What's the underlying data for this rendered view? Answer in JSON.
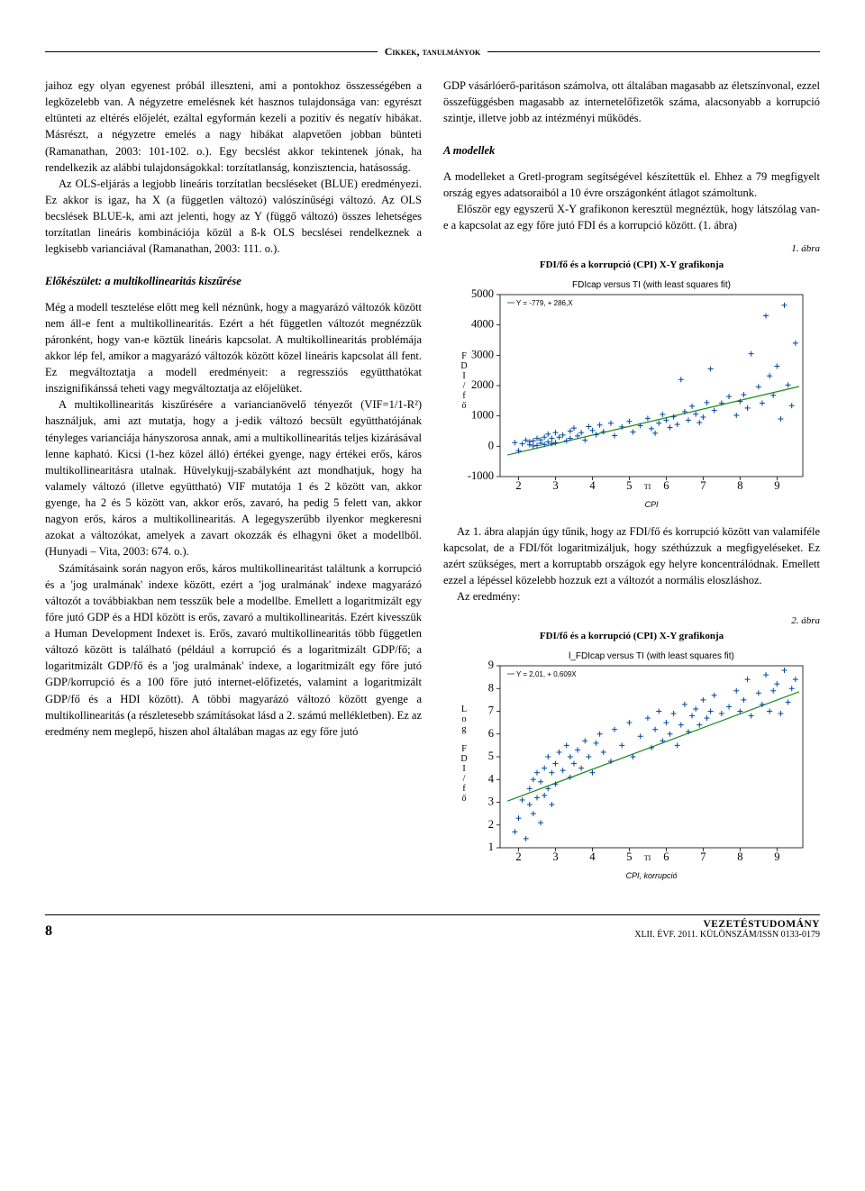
{
  "header": {
    "title": "Cikkek, tanulmányok"
  },
  "left_column": {
    "p1": "jaihoz egy olyan egyenest próbál illeszteni, ami a pontokhoz összességében a legközelebb van. A négyzetre emelésnek két hasznos tulajdonsága van: egyrészt eltünteti az eltérés előjelét, ezáltal egyformán kezeli a pozitív és negatív hibákat. Másrészt, a négyzetre emelés a nagy hibákat alapvetően jobban bünteti (Ramanathan, 2003: 101-102. o.). Egy becslést akkor tekintenek jónak, ha rendelkezik az alábbi tulajdonságokkal: torzítatlanság, konzisztencia, hatásosság.",
    "p2": "Az OLS-eljárás a legjobb lineáris torzítatlan becsléseket (BLUE) eredményezi. Ez akkor is igaz, ha X (a független változó) valószínűségi változó. Az OLS becslések BLUE-k, ami azt jelenti, hogy az Y (függő változó) összes lehetséges torzítatlan lineáris kombinációja közül a ß-k OLS becslései rendelkeznek a legkisebb varianciával (Ramanathan, 2003: 111. o.).",
    "h1": "Előkészület: a multikollinearitás kiszűrése",
    "p3": "Még a modell tesztelése előtt meg kell néznünk, hogy a magyarázó változók között nem áll-e fent a multikollinearitás. Ezért a hét független változót megnézzük páronként, hogy van-e köztük lineáris kapcsolat. A multikollinearitás problémája akkor lép fel, amikor a magyarázó változók között közel lineáris kapcsolat áll fent. Ez megváltoztatja a modell eredményeit: a regressziós együtthatókat inszignifikánssá teheti vagy megváltoztatja az előjelüket.",
    "p4": "A multikollinearitás kiszűrésére a variancianövelő tényezőt (VIF=1/1-R²) használjuk, ami azt mutatja, hogy a j-edik változó becsült együtthatójának tényleges varianciája hányszorosa annak, ami a multikollinearitás teljes kizárásával lenne kapható. Kicsi (1-hez közel álló) értékei gyenge, nagy értékei erős, káros multikollinearitásra utalnak. Hüvelykujj-szabályként azt mondhatjuk, hogy ha valamely változó (illetve együttható) VIF mutatója 1 és 2 között van, akkor gyenge, ha 2 és 5 között van, akkor erős, zavaró, ha pedig 5 felett van, akkor nagyon erős, káros a multikollinearitás. A legegyszerűbb ilyenkor megkeresni azokat a változókat, amelyek a zavart okozzák és elhagyni őket a modellből. (Hunyadi – Vita, 2003: 674. o.).",
    "p5": "Számításaink során nagyon erős, káros multikollinearitást találtunk a korrupció és a 'jog uralmának' indexe között, ezért a 'jog uralmának' indexe magyarázó változót a továbbiakban nem tesszük bele a modellbe. Emellett a logaritmizált egy főre jutó GDP és a HDI között is erős, zavaró a multikollinearitás. Ezért kivesszük a Human Development Indexet is. Erős, zavaró multikollinearitás több független változó között is található (például a korrupció és a logaritmizált GDP/fő; a logaritmizált GDP/fő és a 'jog uralmának' indexe, a logaritmizált egy főre jutó GDP/korrupció és a 100 főre jutó internet-előfizetés, valamint a logaritmizált GDP/fő és a HDI között). A többi magyarázó változó között gyenge a multikollinearitás (a részletesebb számításokat lásd a 2. számú mellékletben). Ez az eredmény nem meglepő, hiszen ahol általában magas az egy főre jutó"
  },
  "right_column": {
    "p1": "GDP vásárlóerő-paritáson számolva, ott általában magasabb az életszínvonal, ezzel összefüggésben magasabb az internetelőfizetők száma, alacsonyabb a korrupció szintje, illetve jobb az intézményi működés.",
    "h1": "A modellek",
    "p2": "A modelleket a Gretl-program segítségével készítettük el. Ehhez a 79 megfigyelt ország egyes adatsoraiból a 10 évre országonként átlagot számoltunk.",
    "p3": "Először egy egyszerű X-Y grafikonon keresztül megnéztük, hogy látszólag van-e a kapcsolat az egy főre jutó FDI és a korrupció között. (1. ábra)",
    "fig1_num": "1. ábra",
    "fig1_title": "FDI/fő és a korrupció (CPI) X-Y grafikonja",
    "p4": "Az 1. ábra alapján úgy tűnik, hogy az FDI/fő és korrupció között van valamiféle kapcsolat, de a FDI/főt logaritmizáljuk, hogy széthúzzuk a megfigyeléseket. Ez azért szükséges, mert a korruptabb országok egy helyre koncentrálódnak. Emellett ezzel a lépéssel közelebb hozzuk ezt a változót a normális eloszláshoz.",
    "p5": "Az eredmény:",
    "fig2_num": "2. ábra",
    "fig2_title": "FDI/fő és a korrupció (CPI) X-Y grafikonja"
  },
  "chart1": {
    "type": "scatter",
    "plot_title": "FDIcap versus TI (with least squares fit)",
    "fit_legend": "Y = -779, + 286,X",
    "xlabel": "CPI",
    "xlabel_sub": "TI",
    "ylabel_vertical": "FDI/fő",
    "ylim": [
      -1000,
      5000
    ],
    "yticks": [
      -1000,
      0,
      1000,
      2000,
      3000,
      4000,
      5000
    ],
    "xlim": [
      1.5,
      9.7
    ],
    "xticks": [
      2,
      3,
      4,
      5,
      6,
      7,
      8,
      9
    ],
    "marker": "+",
    "marker_color": "#0047a0",
    "line_color": "#1a8a1a",
    "grid_color": "#000000",
    "background_color": "#ffffff",
    "line_points": [
      [
        1.7,
        -290
      ],
      [
        9.6,
        1970
      ]
    ],
    "points": [
      [
        1.9,
        120
      ],
      [
        2.0,
        -150
      ],
      [
        2.1,
        80
      ],
      [
        2.2,
        200
      ],
      [
        2.3,
        50
      ],
      [
        2.3,
        150
      ],
      [
        2.4,
        10
      ],
      [
        2.4,
        180
      ],
      [
        2.5,
        260
      ],
      [
        2.5,
        30
      ],
      [
        2.6,
        100
      ],
      [
        2.6,
        210
      ],
      [
        2.7,
        300
      ],
      [
        2.7,
        60
      ],
      [
        2.8,
        400
      ],
      [
        2.8,
        140
      ],
      [
        2.9,
        90
      ],
      [
        2.9,
        260
      ],
      [
        3.0,
        450
      ],
      [
        3.0,
        120
      ],
      [
        3.1,
        300
      ],
      [
        3.2,
        370
      ],
      [
        3.3,
        180
      ],
      [
        3.4,
        500
      ],
      [
        3.4,
        260
      ],
      [
        3.5,
        600
      ],
      [
        3.6,
        340
      ],
      [
        3.7,
        450
      ],
      [
        3.8,
        200
      ],
      [
        3.9,
        650
      ],
      [
        4.0,
        520
      ],
      [
        4.1,
        380
      ],
      [
        4.2,
        700
      ],
      [
        4.3,
        480
      ],
      [
        4.5,
        760
      ],
      [
        4.6,
        350
      ],
      [
        4.8,
        640
      ],
      [
        5.0,
        820
      ],
      [
        5.1,
        470
      ],
      [
        5.3,
        680
      ],
      [
        5.5,
        920
      ],
      [
        5.6,
        580
      ],
      [
        5.7,
        430
      ],
      [
        5.8,
        760
      ],
      [
        5.9,
        1050
      ],
      [
        6.0,
        860
      ],
      [
        6.1,
        620
      ],
      [
        6.2,
        970
      ],
      [
        6.3,
        720
      ],
      [
        6.4,
        2200
      ],
      [
        6.5,
        1140
      ],
      [
        6.6,
        860
      ],
      [
        6.7,
        1320
      ],
      [
        6.8,
        1060
      ],
      [
        6.9,
        780
      ],
      [
        7.0,
        960
      ],
      [
        7.1,
        1440
      ],
      [
        7.2,
        2550
      ],
      [
        7.3,
        1180
      ],
      [
        7.5,
        1420
      ],
      [
        7.7,
        1640
      ],
      [
        7.9,
        1020
      ],
      [
        8.0,
        1480
      ],
      [
        8.1,
        1700
      ],
      [
        8.2,
        1260
      ],
      [
        8.3,
        3050
      ],
      [
        8.5,
        1960
      ],
      [
        8.6,
        1420
      ],
      [
        8.7,
        4300
      ],
      [
        8.8,
        2320
      ],
      [
        8.9,
        1680
      ],
      [
        9.0,
        2640
      ],
      [
        9.1,
        900
      ],
      [
        9.2,
        4650
      ],
      [
        9.3,
        2020
      ],
      [
        9.4,
        1340
      ],
      [
        9.5,
        3400
      ]
    ]
  },
  "chart2": {
    "type": "scatter",
    "plot_title": "l_FDIcap versus TI (with least squares fit)",
    "fit_legend": "Y = 2,01, + 0,609X",
    "xlabel": "CPI, korrupció",
    "xlabel_sub": "TI",
    "ylabel_vertical": "Log FDI/fő",
    "ylim": [
      1,
      9
    ],
    "yticks": [
      1,
      2,
      3,
      4,
      5,
      6,
      7,
      8,
      9
    ],
    "xlim": [
      1.5,
      9.7
    ],
    "xticks": [
      2,
      3,
      4,
      5,
      6,
      7,
      8,
      9
    ],
    "marker": "+",
    "marker_color": "#0047a0",
    "line_color": "#1a8a1a",
    "grid_color": "#000000",
    "background_color": "#ffffff",
    "line_points": [
      [
        1.7,
        3.05
      ],
      [
        9.6,
        7.86
      ]
    ],
    "points": [
      [
        1.9,
        1.7
      ],
      [
        2.0,
        2.3
      ],
      [
        2.1,
        3.1
      ],
      [
        2.2,
        1.4
      ],
      [
        2.3,
        2.9
      ],
      [
        2.3,
        3.6
      ],
      [
        2.4,
        4.0
      ],
      [
        2.4,
        2.5
      ],
      [
        2.5,
        3.2
      ],
      [
        2.5,
        4.3
      ],
      [
        2.6,
        2.1
      ],
      [
        2.6,
        3.9
      ],
      [
        2.7,
        4.5
      ],
      [
        2.7,
        3.3
      ],
      [
        2.8,
        5.0
      ],
      [
        2.8,
        3.6
      ],
      [
        2.9,
        4.3
      ],
      [
        2.9,
        2.9
      ],
      [
        3.0,
        4.7
      ],
      [
        3.0,
        3.8
      ],
      [
        3.1,
        5.2
      ],
      [
        3.2,
        4.4
      ],
      [
        3.3,
        5.5
      ],
      [
        3.4,
        4.1
      ],
      [
        3.4,
        5.0
      ],
      [
        3.5,
        4.7
      ],
      [
        3.6,
        5.3
      ],
      [
        3.7,
        4.5
      ],
      [
        3.8,
        5.7
      ],
      [
        3.9,
        5.0
      ],
      [
        4.0,
        4.3
      ],
      [
        4.1,
        5.6
      ],
      [
        4.2,
        6.0
      ],
      [
        4.3,
        5.2
      ],
      [
        4.5,
        4.8
      ],
      [
        4.6,
        6.2
      ],
      [
        4.8,
        5.5
      ],
      [
        5.0,
        6.5
      ],
      [
        5.1,
        5.0
      ],
      [
        5.3,
        5.9
      ],
      [
        5.5,
        6.7
      ],
      [
        5.6,
        5.4
      ],
      [
        5.7,
        6.2
      ],
      [
        5.8,
        7.0
      ],
      [
        5.9,
        5.7
      ],
      [
        6.0,
        6.5
      ],
      [
        6.1,
        6.0
      ],
      [
        6.2,
        6.9
      ],
      [
        6.3,
        5.5
      ],
      [
        6.4,
        6.4
      ],
      [
        6.5,
        7.3
      ],
      [
        6.6,
        6.1
      ],
      [
        6.7,
        6.8
      ],
      [
        6.8,
        7.1
      ],
      [
        6.9,
        6.4
      ],
      [
        7.0,
        7.5
      ],
      [
        7.1,
        6.7
      ],
      [
        7.2,
        7.0
      ],
      [
        7.3,
        7.7
      ],
      [
        7.5,
        6.9
      ],
      [
        7.7,
        7.2
      ],
      [
        7.9,
        7.9
      ],
      [
        8.0,
        7.0
      ],
      [
        8.1,
        7.5
      ],
      [
        8.2,
        8.4
      ],
      [
        8.3,
        6.8
      ],
      [
        8.5,
        7.8
      ],
      [
        8.6,
        7.3
      ],
      [
        8.7,
        8.6
      ],
      [
        8.8,
        7.0
      ],
      [
        8.9,
        7.9
      ],
      [
        9.0,
        8.2
      ],
      [
        9.1,
        6.9
      ],
      [
        9.2,
        8.8
      ],
      [
        9.3,
        7.4
      ],
      [
        9.4,
        8.0
      ],
      [
        9.5,
        8.4
      ]
    ]
  },
  "footer": {
    "page": "8",
    "brand": "VEZETÉSTUDOMÁNY",
    "meta": "XLII. ÉVF. 2011. KÜLÖNSZÁM/ISSN 0133-0179"
  }
}
